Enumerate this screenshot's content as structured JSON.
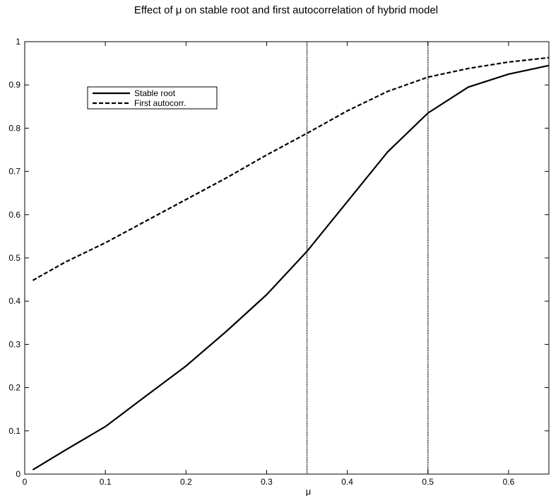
{
  "chart_data": {
    "type": "line",
    "title": "Effect of μ on stable root and first autocorrelation of hybrid model",
    "xlabel": "μ",
    "ylabel": "",
    "xlim": [
      0,
      0.65
    ],
    "ylim": [
      0,
      1
    ],
    "xticks": [
      0,
      0.1,
      0.2,
      0.3,
      0.4,
      0.5,
      0.6
    ],
    "xtick_labels": [
      "0",
      "0.1",
      "0.2",
      "0.3",
      "0.4",
      "0.5",
      "0.6"
    ],
    "yticks": [
      0,
      0.1,
      0.2,
      0.3,
      0.4,
      0.5,
      0.6,
      0.7,
      0.8,
      0.9,
      1
    ],
    "ytick_labels": [
      "0",
      "0.1",
      "0.2",
      "0.3",
      "0.4",
      "0.5",
      "0.6",
      "0.7",
      "0.8",
      "0.9",
      "1"
    ],
    "grid": false,
    "legend_position": "top-left",
    "vertical_lines": [
      0.35,
      0.5
    ],
    "series": [
      {
        "name": "Stable root",
        "style": "solid",
        "x": [
          0.01,
          0.05,
          0.1,
          0.15,
          0.2,
          0.25,
          0.3,
          0.35,
          0.4,
          0.45,
          0.5,
          0.55,
          0.6,
          0.65
        ],
        "y": [
          0.01,
          0.055,
          0.11,
          0.18,
          0.25,
          0.33,
          0.415,
          0.515,
          0.63,
          0.745,
          0.835,
          0.895,
          0.925,
          0.945
        ]
      },
      {
        "name": "First autocorr.",
        "style": "dashed",
        "x": [
          0.01,
          0.05,
          0.1,
          0.15,
          0.2,
          0.25,
          0.3,
          0.35,
          0.4,
          0.45,
          0.5,
          0.55,
          0.6,
          0.65
        ],
        "y": [
          0.448,
          0.49,
          0.535,
          0.585,
          0.635,
          0.685,
          0.738,
          0.788,
          0.84,
          0.885,
          0.918,
          0.938,
          0.953,
          0.963
        ]
      }
    ]
  }
}
